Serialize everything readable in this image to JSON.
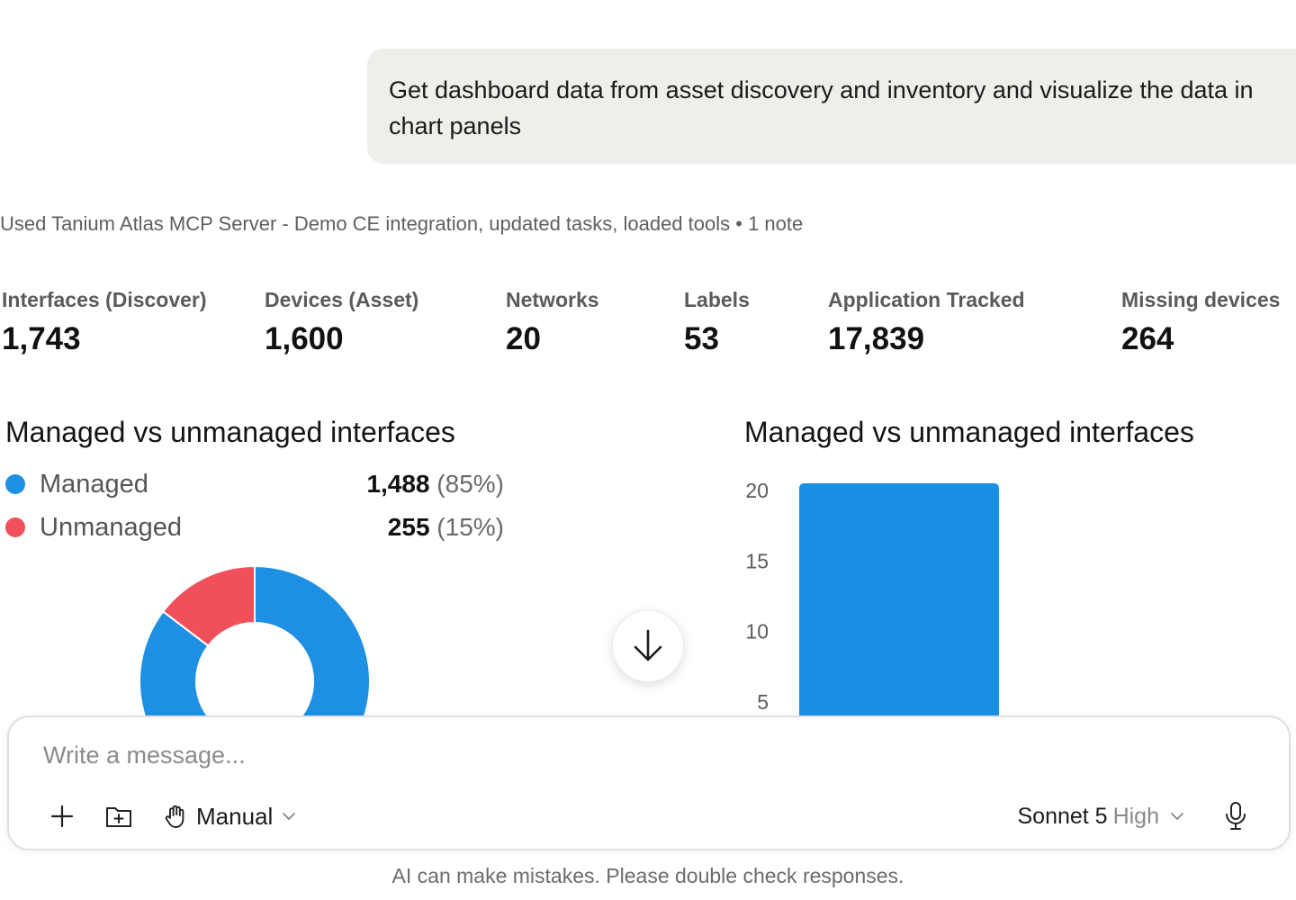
{
  "user_message": "Get dashboard data from asset discovery and inventory and visualize the data in chart panels",
  "tool_status": "Used Tanium Atlas MCP Server - Demo CE integration, updated tasks, loaded tools • 1 note",
  "stats": [
    {
      "label": "Interfaces (Discover)",
      "value": "1,743"
    },
    {
      "label": "Devices (Asset)",
      "value": "1,600"
    },
    {
      "label": "Networks",
      "value": "20"
    },
    {
      "label": "Labels",
      "value": "53"
    },
    {
      "label": "Application Tracked",
      "value": "17,839"
    },
    {
      "label": "Missing devices",
      "value": "264"
    }
  ],
  "donut_panel": {
    "title": "Managed vs unmanaged interfaces",
    "legend": [
      {
        "label": "Managed",
        "value": "1,488",
        "pct": "(85%)",
        "color": "#1e90e4"
      },
      {
        "label": "Unmanaged",
        "value": "255",
        "pct": "(15%)",
        "color": "#f0505a"
      }
    ]
  },
  "bar_panel": {
    "title": "Managed vs unmanaged interfaces"
  },
  "chart_data": [
    {
      "type": "pie",
      "categories": [
        "Managed",
        "Unmanaged"
      ],
      "values": [
        1488,
        255
      ],
      "colors": [
        "#1e90e4",
        "#f0505a"
      ]
    },
    {
      "type": "bar",
      "y_ticks": [
        "20",
        "15",
        "10",
        "5"
      ],
      "ylim": [
        0,
        20
      ],
      "values": [
        20
      ],
      "color": "#1a90e4"
    }
  ],
  "composer": {
    "placeholder": "Write a message...",
    "mode_label": "Manual",
    "model_name": "Sonnet 5",
    "model_effort": "High"
  },
  "disclaimer": "AI can make mistakes. Please double check responses.",
  "icons": [
    "arrow-down-icon",
    "plus-icon",
    "folder-add-icon",
    "hand-icon",
    "chevron-down-icon",
    "microphone-icon"
  ]
}
